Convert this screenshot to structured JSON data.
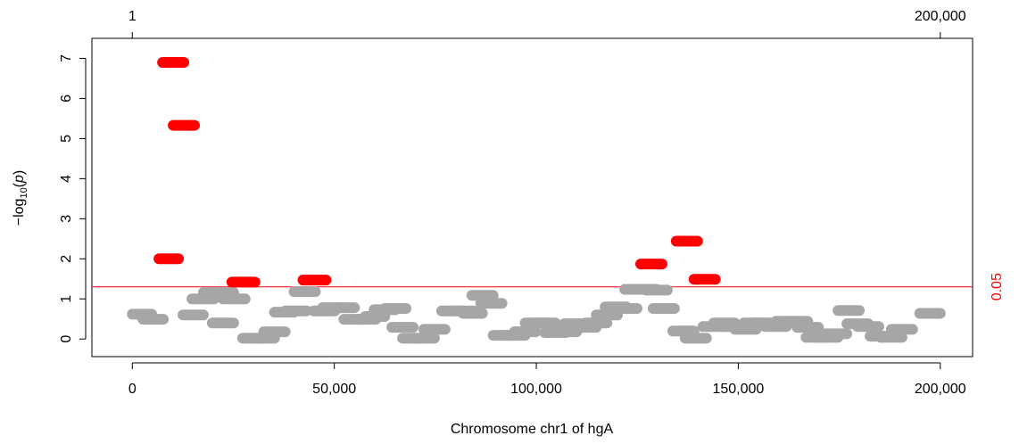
{
  "chart_data": {
    "type": "segment",
    "xlabel": "Chromosome chr1 of hgA",
    "ylabel_parts": [
      "−log",
      "10",
      "(",
      "p",
      ")"
    ],
    "xlim": [
      -10000,
      208000
    ],
    "ylim": [
      -0.44,
      7.5
    ],
    "xticks": [
      0,
      {
        "value": 50000,
        "label": "50,000"
      },
      {
        "value": 100000,
        "label": "100,000"
      },
      {
        "value": 150000,
        "label": "150,000"
      },
      {
        "value": 200000,
        "label": "200,000"
      }
    ],
    "x2ticks": [
      1,
      {
        "value": 200000,
        "label": "200,000"
      }
    ],
    "yticks": [
      0,
      1,
      2,
      3,
      4,
      5,
      6,
      7
    ],
    "threshold_line": {
      "value": 1.30103,
      "label": "0.05",
      "color": "#ff0000"
    },
    "series": [
      {
        "color": "#a6a6a6",
        "x0": [
          0,
          2640,
          12540,
          14740,
          17600,
          20240,
          19800,
          22440,
          27280,
          29920,
          32560,
          35200,
          37840,
          40040,
          44880,
          47080,
          49720,
          52360,
          55000,
          57640,
          59840,
          62480,
          64240,
          66880,
          69520,
          72160,
          76560,
          79200,
          81840,
          84040,
          86240,
          89320,
          91960,
          94600,
          97240,
          99440,
          102080,
          104720,
          106920,
          109560,
          112200,
          114840,
          117040,
          119680,
          121880,
          124520,
          127160,
          128920,
          133760,
          136840,
          141240,
          143880,
          146520,
          149160,
          151360,
          154000,
          156640,
          159280,
          161920,
          164560,
          166760,
          169400,
          171600,
          174680,
          176880,
          179520,
          182600,
          185240,
          187880,
          194900
        ],
        "x1": [
          4800,
          7700,
          17600,
          20240,
          22880,
          25080,
          25080,
          27940,
          32560,
          35200,
          37840,
          40040,
          43120,
          45320,
          50160,
          52360,
          55000,
          57640,
          60280,
          62480,
          65120,
          67760,
          69520,
          72160,
          74800,
          77440,
          81840,
          84480,
          86680,
          89320,
          91520,
          94600,
          97240,
          99880,
          102520,
          104720,
          107360,
          110000,
          112200,
          114840,
          117480,
          120120,
          122320,
          124960,
          127160,
          129800,
          132440,
          134200,
          139040,
          142120,
          146520,
          149160,
          151800,
          154440,
          156640,
          159280,
          161920,
          164560,
          167200,
          169840,
          172040,
          174680,
          176880,
          179960,
          182160,
          184800,
          187880,
          190520,
          193160,
          200000
        ],
        "values": [
          0.62,
          0.49,
          0.6,
          1.0,
          1.16,
          1.16,
          0.4,
          1.0,
          0.02,
          0.02,
          0.18,
          0.67,
          0.7,
          1.18,
          0.7,
          0.78,
          0.78,
          0.49,
          0.49,
          0.56,
          0.73,
          0.76,
          0.29,
          0.02,
          0.02,
          0.24,
          0.7,
          0.7,
          0.64,
          1.09,
          0.89,
          0.09,
          0.09,
          0.18,
          0.4,
          0.4,
          0.16,
          0.18,
          0.38,
          0.29,
          0.4,
          0.6,
          0.8,
          0.76,
          1.24,
          1.24,
          1.22,
          0.76,
          0.2,
          0.02,
          0.31,
          0.4,
          0.31,
          0.24,
          0.4,
          0.4,
          0.31,
          0.44,
          0.44,
          0.29,
          0.04,
          0.04,
          0.13,
          0.71,
          0.38,
          0.31,
          0.07,
          0.04,
          0.24,
          0.64
        ]
      },
      {
        "color": "#ff0000",
        "x0": [
          6600,
          7480,
          10120,
          24640,
          42240,
          125840,
          134640,
          139040
        ],
        "x1": [
          11440,
          12760,
          15400,
          30360,
          47960,
          131120,
          139920,
          144320
        ],
        "values": [
          2.0,
          6.9,
          5.33,
          1.42,
          1.47,
          1.87,
          2.44,
          1.49
        ]
      }
    ]
  }
}
